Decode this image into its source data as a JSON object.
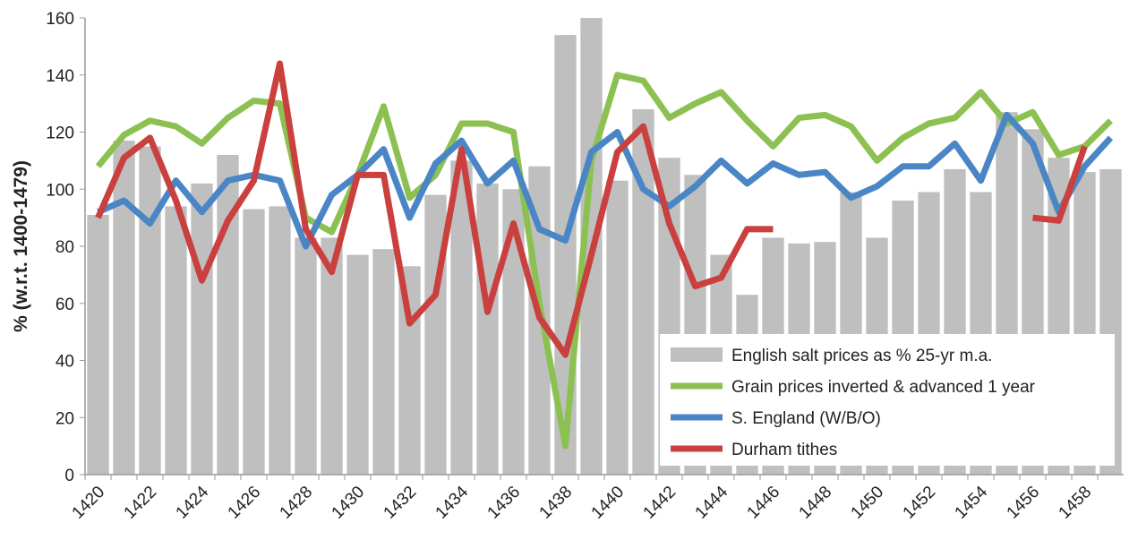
{
  "chart_data": {
    "type": "combo",
    "y_label": "% (w.r.t. 1400-1479)",
    "categories": [
      "1420",
      null,
      "1422",
      null,
      "1424",
      null,
      "1426",
      null,
      "1428",
      null,
      "1430",
      null,
      "1432",
      null,
      "1434",
      null,
      "1436",
      null,
      "1438",
      null,
      "1440",
      null,
      "1442",
      null,
      "1444",
      null,
      "1446",
      null,
      "1448",
      null,
      "1450",
      null,
      "1452",
      null,
      "1454",
      null,
      "1456",
      null,
      "1458",
      null
    ],
    "series": [
      {
        "name": "English salt prices as % 25-yr m.a.",
        "type": "bar",
        "color": "#bfbfbf",
        "values": [
          91,
          117,
          115,
          94,
          102,
          112,
          93,
          94,
          83,
          83,
          77,
          79,
          73,
          98,
          110,
          102,
          100,
          108,
          154,
          160,
          103,
          128,
          111,
          105,
          77,
          63,
          83,
          81,
          81.5,
          99,
          83,
          96,
          99,
          107,
          99,
          127,
          121,
          111,
          106,
          107
        ]
      },
      {
        "name": "Grain prices inverted & advanced 1 year",
        "type": "line",
        "color": "#8cc152",
        "values": [
          108,
          119,
          124,
          122,
          116,
          125,
          131,
          130,
          90,
          85,
          105,
          129,
          97,
          105,
          123,
          123,
          120,
          60,
          10,
          110,
          140,
          138,
          125,
          130,
          134,
          124,
          115,
          125,
          126,
          122,
          110,
          118,
          123,
          125,
          134,
          123,
          127,
          112,
          115,
          124
        ]
      },
      {
        "name": "S. England (W/B/O)",
        "type": "line",
        "color": "#4a86c5",
        "values": [
          92,
          96,
          88,
          103,
          92,
          103,
          105,
          103,
          80,
          98,
          105,
          114,
          90,
          109,
          117,
          102,
          110,
          86,
          82,
          113,
          120,
          100,
          94,
          101,
          110,
          102,
          109,
          105,
          106,
          97,
          101,
          108,
          108,
          116,
          103,
          126,
          116,
          92,
          108,
          118
        ]
      },
      {
        "name": "Durham tithes",
        "type": "line",
        "color": "#c9403e",
        "values": [
          90,
          111,
          118,
          96,
          68,
          89,
          103,
          144,
          86,
          71,
          105,
          105,
          53,
          63,
          114,
          57,
          88,
          55,
          42,
          77,
          113,
          122,
          88,
          66,
          69,
          86,
          86,
          null,
          null,
          null,
          null,
          null,
          null,
          null,
          null,
          null,
          90,
          89,
          115,
          null
        ]
      }
    ],
    "ylim": [
      0,
      160
    ],
    "yticks": [
      0,
      20,
      40,
      60,
      80,
      100,
      120,
      140,
      160
    ],
    "legend": "lower right"
  }
}
